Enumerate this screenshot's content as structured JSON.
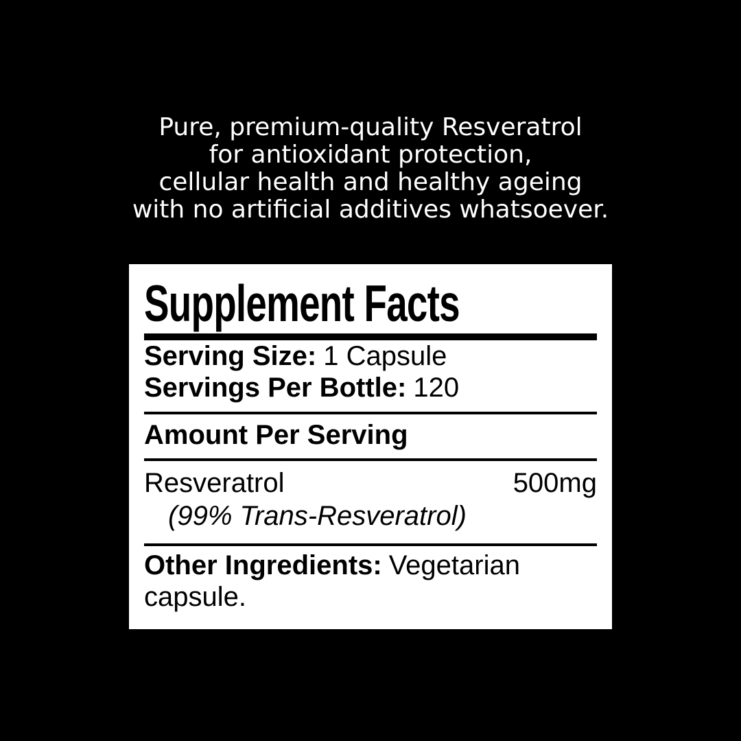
{
  "page": {
    "background_color": "#000000",
    "panel_background_color": "#ffffff",
    "text_color_intro": "#ffffff",
    "text_color_label": "#000000"
  },
  "intro": {
    "lines": [
      "Pure, premium-quality Resveratrol",
      "for antioxidant protection,",
      "cellular health and healthy ageing",
      "with no artificial additives whatsoever."
    ]
  },
  "label": {
    "title": "Supplement Facts",
    "serving_size_label": "Serving Size:",
    "serving_size_value": "1 Capsule",
    "servings_per_bottle_label": "Servings Per Bottle:",
    "servings_per_bottle_value": "120",
    "amount_per_serving_heading": "Amount Per Serving",
    "ingredient": {
      "name": "Resveratrol",
      "amount": "500mg",
      "detail": "(99% Trans-Resveratrol)"
    },
    "other_ingredients_label": "Other Ingredients:",
    "other_ingredients_value": "Vegetarian capsule."
  }
}
